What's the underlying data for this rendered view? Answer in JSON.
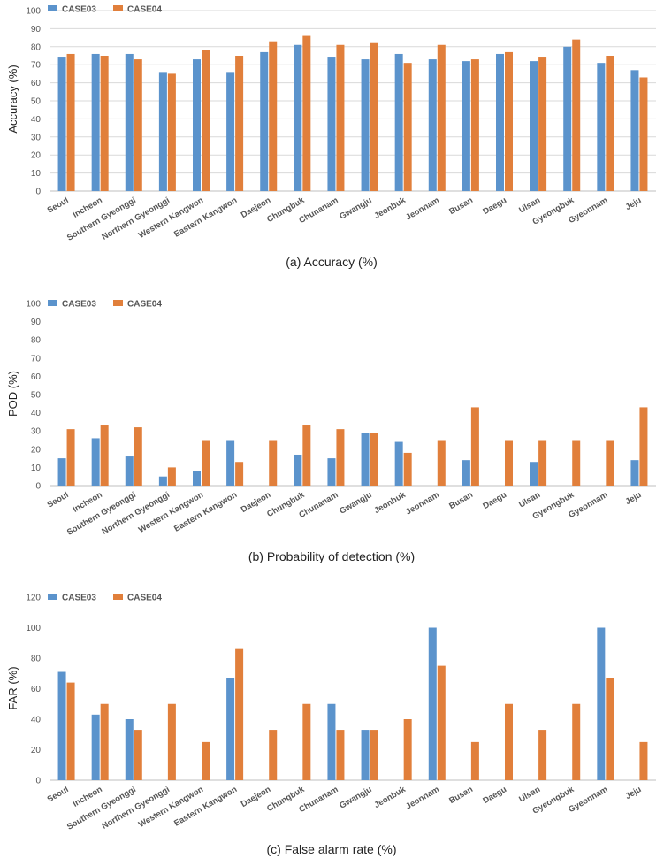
{
  "colors": {
    "case03": "#5b93cc",
    "case04": "#e17f3b",
    "grid": "#d9d9d9",
    "axis": "#bfbfbf"
  },
  "chart_data": [
    {
      "type": "bar",
      "title": "(a) Accuracy (%)",
      "ylabel": "Accuracy (%)",
      "xlabel": "",
      "ylim": [
        0,
        100
      ],
      "yticks": [
        0,
        10,
        20,
        30,
        40,
        50,
        60,
        70,
        80,
        90,
        100
      ],
      "legend": "top-left",
      "grid": true,
      "categories": [
        "Seoul",
        "Incheon",
        "Southern Gyeonggi",
        "Northern Gyeonggi",
        "Western Kangwon",
        "Eastern Kangwon",
        "Daejeon",
        "Chungbuk",
        "Chunanam",
        "Gwangju",
        "Jeonbuk",
        "Jeonnam",
        "Busan",
        "Daegu",
        "Ulsan",
        "Gyeongbuk",
        "Gyeonnam",
        "Jeju"
      ],
      "series": [
        {
          "name": "CASE03",
          "values": [
            74,
            76,
            76,
            66,
            73,
            66,
            77,
            81,
            74,
            73,
            76,
            73,
            72,
            76,
            72,
            80,
            71,
            67
          ]
        },
        {
          "name": "CASE04",
          "values": [
            76,
            75,
            73,
            65,
            78,
            75,
            83,
            86,
            81,
            82,
            71,
            81,
            73,
            77,
            74,
            84,
            75,
            63
          ]
        }
      ]
    },
    {
      "type": "bar",
      "title": "(b) Probability of detection (%)",
      "ylabel": "POD (%)",
      "xlabel": "",
      "ylim": [
        0,
        100
      ],
      "yticks": [
        0,
        10,
        20,
        30,
        40,
        50,
        60,
        70,
        80,
        90,
        100
      ],
      "legend": "top-left",
      "grid": false,
      "categories": [
        "Seoul",
        "Incheon",
        "Southern Gyeonggi",
        "Northern Gyeonggi",
        "Western Kangwon",
        "Eastern Kangwon",
        "Daejeon",
        "Chungbuk",
        "Chunanam",
        "Gwangju",
        "Jeonbuk",
        "Jeonnam",
        "Busan",
        "Daegu",
        "Ulsan",
        "Gyeongbuk",
        "Gyeonnam",
        "Jeju"
      ],
      "series": [
        {
          "name": "CASE03",
          "values": [
            15,
            26,
            16,
            5,
            8,
            25,
            0,
            17,
            15,
            29,
            24,
            0,
            14,
            0,
            13,
            0,
            0,
            14
          ]
        },
        {
          "name": "CASE04",
          "values": [
            31,
            33,
            32,
            10,
            25,
            13,
            25,
            33,
            31,
            29,
            18,
            25,
            43,
            25,
            25,
            25,
            25,
            43
          ]
        }
      ]
    },
    {
      "type": "bar",
      "title": "(c) False alarm rate (%)",
      "ylabel": "FAR (%)",
      "xlabel": "",
      "ylim": [
        0,
        120
      ],
      "yticks": [
        0,
        20,
        40,
        60,
        80,
        100,
        120
      ],
      "legend": "top-left",
      "grid": false,
      "categories": [
        "Seoul",
        "Incheon",
        "Southern Gyeonggi",
        "Northern Gyeonggi",
        "Western Kangwon",
        "Eastern Kangwon",
        "Daejeon",
        "Chungbuk",
        "Chunanam",
        "Gwangju",
        "Jeonbuk",
        "Jeonnam",
        "Busan",
        "Daegu",
        "Ulsan",
        "Gyeongbuk",
        "Gyeonnam",
        "Jeju"
      ],
      "series": [
        {
          "name": "CASE03",
          "values": [
            71,
            43,
            40,
            0,
            0,
            67,
            0,
            0,
            50,
            33,
            0,
            100,
            0,
            0,
            0,
            0,
            100,
            0
          ]
        },
        {
          "name": "CASE04",
          "values": [
            64,
            50,
            33,
            50,
            25,
            86,
            33,
            50,
            33,
            33,
            40,
            75,
            25,
            50,
            33,
            50,
            67,
            25
          ]
        }
      ]
    }
  ]
}
